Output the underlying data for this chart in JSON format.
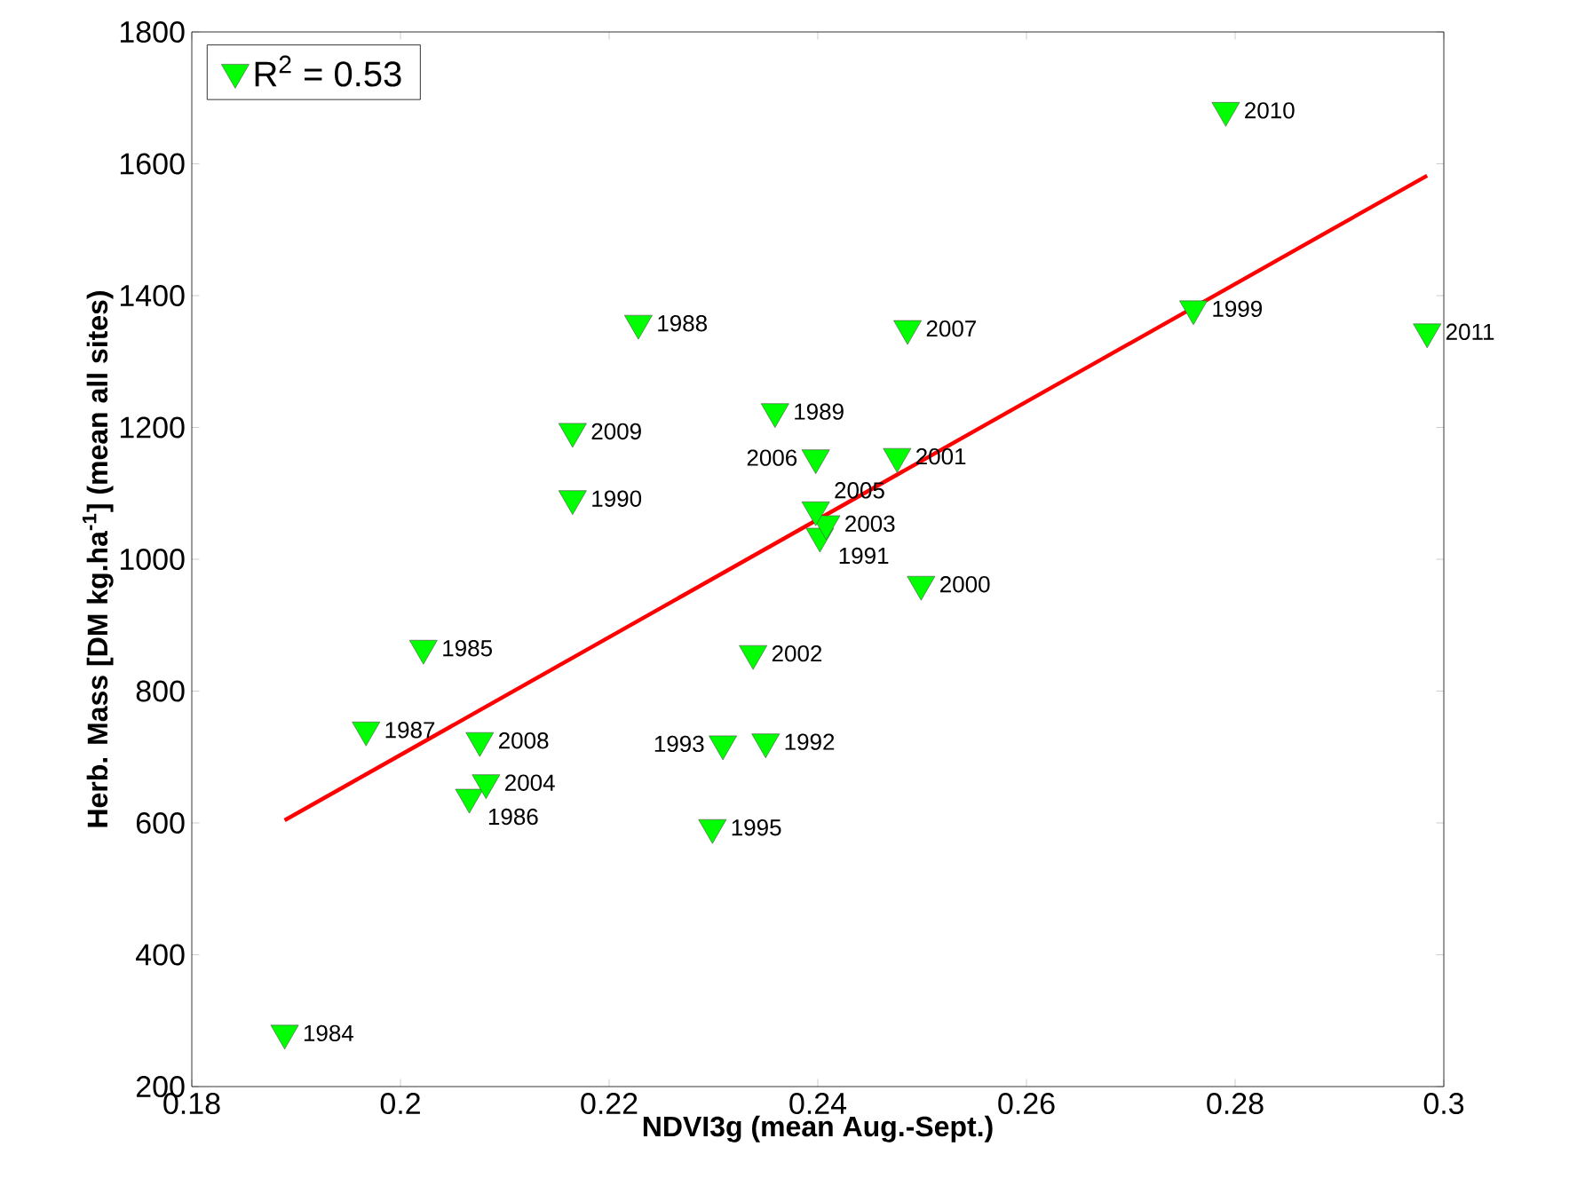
{
  "chart_data": {
    "type": "scatter",
    "xlabel": "NDVI3g (mean Aug.-Sept.)",
    "ylabel": "Herb. Mass [DM kg.ha$^{-1}$] (mean all sites)",
    "xlim": [
      0.18,
      0.3
    ],
    "ylim": [
      200,
      1800
    ],
    "xticks": [
      0.18,
      0.2,
      0.22,
      0.24,
      0.26,
      0.28,
      0.3
    ],
    "yticks": [
      200,
      400,
      600,
      800,
      1000,
      1200,
      1400,
      1600,
      1800
    ],
    "grid": false,
    "legend": "top left",
    "marker": "triangle",
    "series": [
      {
        "name": "R$^{2}$ = 0.53",
        "color": "#00ff00",
        "x": [
          0.1889,
          0.2022,
          0.2066,
          0.1967,
          0.2228,
          0.2359,
          0.2165,
          0.2402,
          0.235,
          0.2309,
          0.2299,
          0.276,
          0.2499,
          0.2476,
          0.2338,
          0.2408,
          0.2082,
          0.2398,
          0.2398,
          0.2486,
          0.2076,
          0.2165,
          0.2791,
          0.2984
        ],
        "values": [
          281,
          865,
          639,
          741,
          1358,
          1224,
          1092,
          1035,
          723,
          720,
          593,
          1380,
          962,
          1156,
          857,
          1054,
          661,
          1075,
          1154,
          1350,
          725,
          1194,
          1681,
          1345
        ]
      },
      {
        "type": "line",
        "marker": "none",
        "color": "#ff0000",
        "x": [
          0.1889,
          0.2984
        ],
        "values": [
          604,
          1582
        ]
      }
    ],
    "annotations": [
      {
        "text": "1984",
        "x": 0.1889,
        "y": 281
      },
      {
        "text": "1985",
        "x": 0.2022,
        "y": 865
      },
      {
        "text": "1986",
        "x": 0.2066,
        "y": 639
      },
      {
        "text": "1987",
        "x": 0.1967,
        "y": 741
      },
      {
        "text": "1988",
        "x": 0.2228,
        "y": 1358
      },
      {
        "text": "1989",
        "x": 0.2359,
        "y": 1224
      },
      {
        "text": "1990",
        "x": 0.2165,
        "y": 1092
      },
      {
        "text": "1991",
        "x": 0.2402,
        "y": 1035
      },
      {
        "text": "1992",
        "x": 0.235,
        "y": 723
      },
      {
        "text": "1993",
        "x": 0.2309,
        "y": 720
      },
      {
        "text": "1995",
        "x": 0.2299,
        "y": 593
      },
      {
        "text": "1999",
        "x": 0.276,
        "y": 1380
      },
      {
        "text": "2000",
        "x": 0.2499,
        "y": 962
      },
      {
        "text": "2001",
        "x": 0.2476,
        "y": 1156
      },
      {
        "text": "2002",
        "x": 0.2338,
        "y": 857
      },
      {
        "text": "2003",
        "x": 0.2408,
        "y": 1054
      },
      {
        "text": "2004",
        "x": 0.2082,
        "y": 661
      },
      {
        "text": "2005",
        "x": 0.2398,
        "y": 1075
      },
      {
        "text": "2006",
        "x": 0.2398,
        "y": 1154
      },
      {
        "text": "2007",
        "x": 0.2486,
        "y": 1350
      },
      {
        "text": "2008",
        "x": 0.2076,
        "y": 725
      },
      {
        "text": "2009",
        "x": 0.2165,
        "y": 1194
      },
      {
        "text": "2010",
        "x": 0.2791,
        "y": 1681
      },
      {
        "text": "2011",
        "x": 0.2984,
        "y": 1345
      }
    ]
  }
}
